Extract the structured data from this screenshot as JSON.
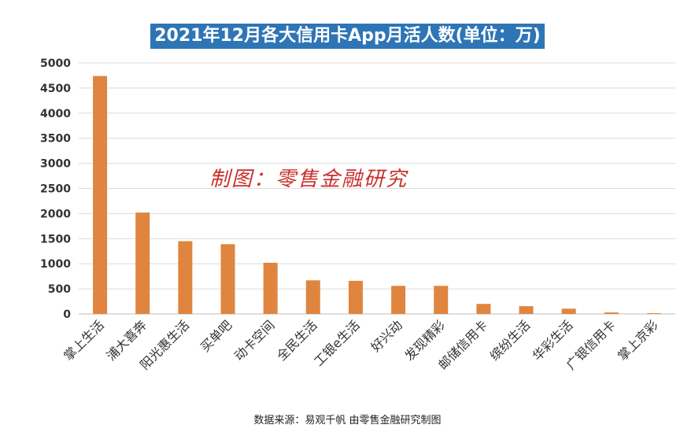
{
  "chart_data": {
    "type": "bar",
    "title": "2021年12月各大信用卡App月活人数(单位：万)",
    "categories": [
      "掌上生活",
      "浦大喜奔",
      "阳光惠生活",
      "买单吧",
      "动卡空间",
      "全民生活",
      "工银e生活",
      "好兴动",
      "发现精彩",
      "邮储信用卡",
      "缤纷生活",
      "华彩生活",
      "广银信用卡",
      "掌上京彩"
    ],
    "values": [
      4740,
      2020,
      1450,
      1390,
      1020,
      670,
      660,
      560,
      560,
      200,
      155,
      105,
      30,
      15
    ],
    "y_ticks": [
      "0",
      "500",
      "1000",
      "1500",
      "2000",
      "2500",
      "3000",
      "3500",
      "4000",
      "4500",
      "5000"
    ],
    "ylim": [
      0,
      5000
    ],
    "grid": true,
    "bar_color": "#e0853f"
  },
  "watermark": "制图：零售金融研究",
  "source": "数据来源：易观千帆 由零售金融研究制图"
}
